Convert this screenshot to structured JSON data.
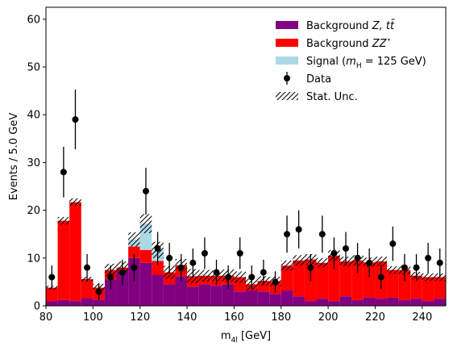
{
  "chart_data": {
    "type": "bar",
    "xlabel": "m$_{4l}$ [GeV]",
    "ylabel": "Events / 5.0 GeV",
    "xlim": [
      80,
      250
    ],
    "ylim": [
      0,
      62.5
    ],
    "bin_width": 5,
    "bin_edges_start": 80,
    "x_ticks": [
      80,
      100,
      120,
      140,
      160,
      180,
      200,
      220,
      240
    ],
    "y_ticks": [
      0,
      10,
      20,
      30,
      40,
      50,
      60
    ],
    "grid": false,
    "legend_position": "top-right",
    "legend": [
      {
        "label": "Background $Z, t\\bar{t}$",
        "kind": "patch",
        "key": "bg_z"
      },
      {
        "label": "Background $ZZ^*$",
        "kind": "patch",
        "key": "bg_zz"
      },
      {
        "label": "Signal ($m_H$ = 125 GeV)",
        "kind": "patch",
        "key": "signal"
      },
      {
        "label": "Data",
        "kind": "errorbar",
        "key": "data"
      },
      {
        "label": "Stat. Unc.",
        "kind": "hatch",
        "key": "unc"
      }
    ],
    "colors": {
      "bg_z": "#800080",
      "bg_zz": "#ff0000",
      "signal": "#add8e6",
      "data": "#000000",
      "unc": "#000000"
    },
    "series": [
      {
        "name": "Background $Z, t\\bar{t}$",
        "key": "bg_z",
        "values": [
          1.0,
          1.2,
          1.0,
          1.6,
          1.3,
          5.5,
          7.5,
          10.0,
          9.0,
          6.5,
          4.5,
          6.2,
          4.0,
          4.5,
          4.2,
          4.5,
          3.0,
          3.2,
          3.0,
          2.5,
          3.2,
          2.0,
          1.0,
          1.5,
          1.0,
          2.0,
          1.2,
          1.8,
          1.5,
          1.7,
          1.2,
          1.5,
          1.0,
          1.5
        ]
      },
      {
        "name": "Background $ZZ^*$",
        "key": "bg_zz",
        "values": [
          2.8,
          16.6,
          20.7,
          4.0,
          2.5,
          2.0,
          0.5,
          2.4,
          2.7,
          2.9,
          2.5,
          2.3,
          2.2,
          1.8,
          2.1,
          1.8,
          3.0,
          1.3,
          2.2,
          2.6,
          5.2,
          7.5,
          8.7,
          7.5,
          9.5,
          7.3,
          8.3,
          7.3,
          7.8,
          5.8,
          6.3,
          4.8,
          5.0,
          4.5
        ]
      },
      {
        "name": "Signal ($m_H$ = 125 GeV)",
        "key": "signal",
        "values": [
          0,
          0,
          0,
          0,
          0,
          0,
          0,
          1.5,
          5.5,
          2.3,
          0,
          0,
          0,
          0,
          0,
          0,
          0,
          0,
          0,
          0,
          0,
          0,
          0,
          0,
          0,
          0,
          0,
          0,
          0,
          0,
          0,
          0,
          0,
          0
        ]
      },
      {
        "name": "Stat. Unc.",
        "key": "unc",
        "values": [
          0.4,
          0.8,
          0.8,
          0.5,
          0.8,
          1.3,
          1.3,
          1.5,
          2.0,
          1.7,
          1.4,
          1.3,
          1.5,
          1.2,
          1.1,
          1.3,
          1.2,
          1.2,
          1.0,
          1.0,
          1.1,
          1.1,
          1.1,
          1.0,
          1.2,
          1.0,
          1.1,
          1.0,
          1.0,
          0.8,
          0.9,
          0.8,
          0.8,
          0.8
        ]
      }
    ],
    "data_points": {
      "name": "Data",
      "x": [
        82.5,
        87.5,
        92.5,
        97.5,
        102.5,
        107.5,
        112.5,
        117.5,
        122.5,
        127.5,
        132.5,
        137.5,
        142.5,
        147.5,
        152.5,
        157.5,
        162.5,
        167.5,
        172.5,
        177.5,
        182.5,
        187.5,
        192.5,
        197.5,
        202.5,
        207.5,
        212.5,
        217.5,
        222.5,
        227.5,
        232.5,
        237.5,
        242.5,
        247.5
      ],
      "y": [
        6,
        28,
        39,
        8,
        3,
        6,
        7,
        8,
        24,
        12,
        10,
        8,
        9,
        11,
        7,
        6,
        11,
        6,
        7,
        5,
        15,
        16,
        8,
        15,
        11,
        12,
        10,
        9,
        6,
        13,
        8,
        8,
        10,
        9
      ]
    }
  }
}
